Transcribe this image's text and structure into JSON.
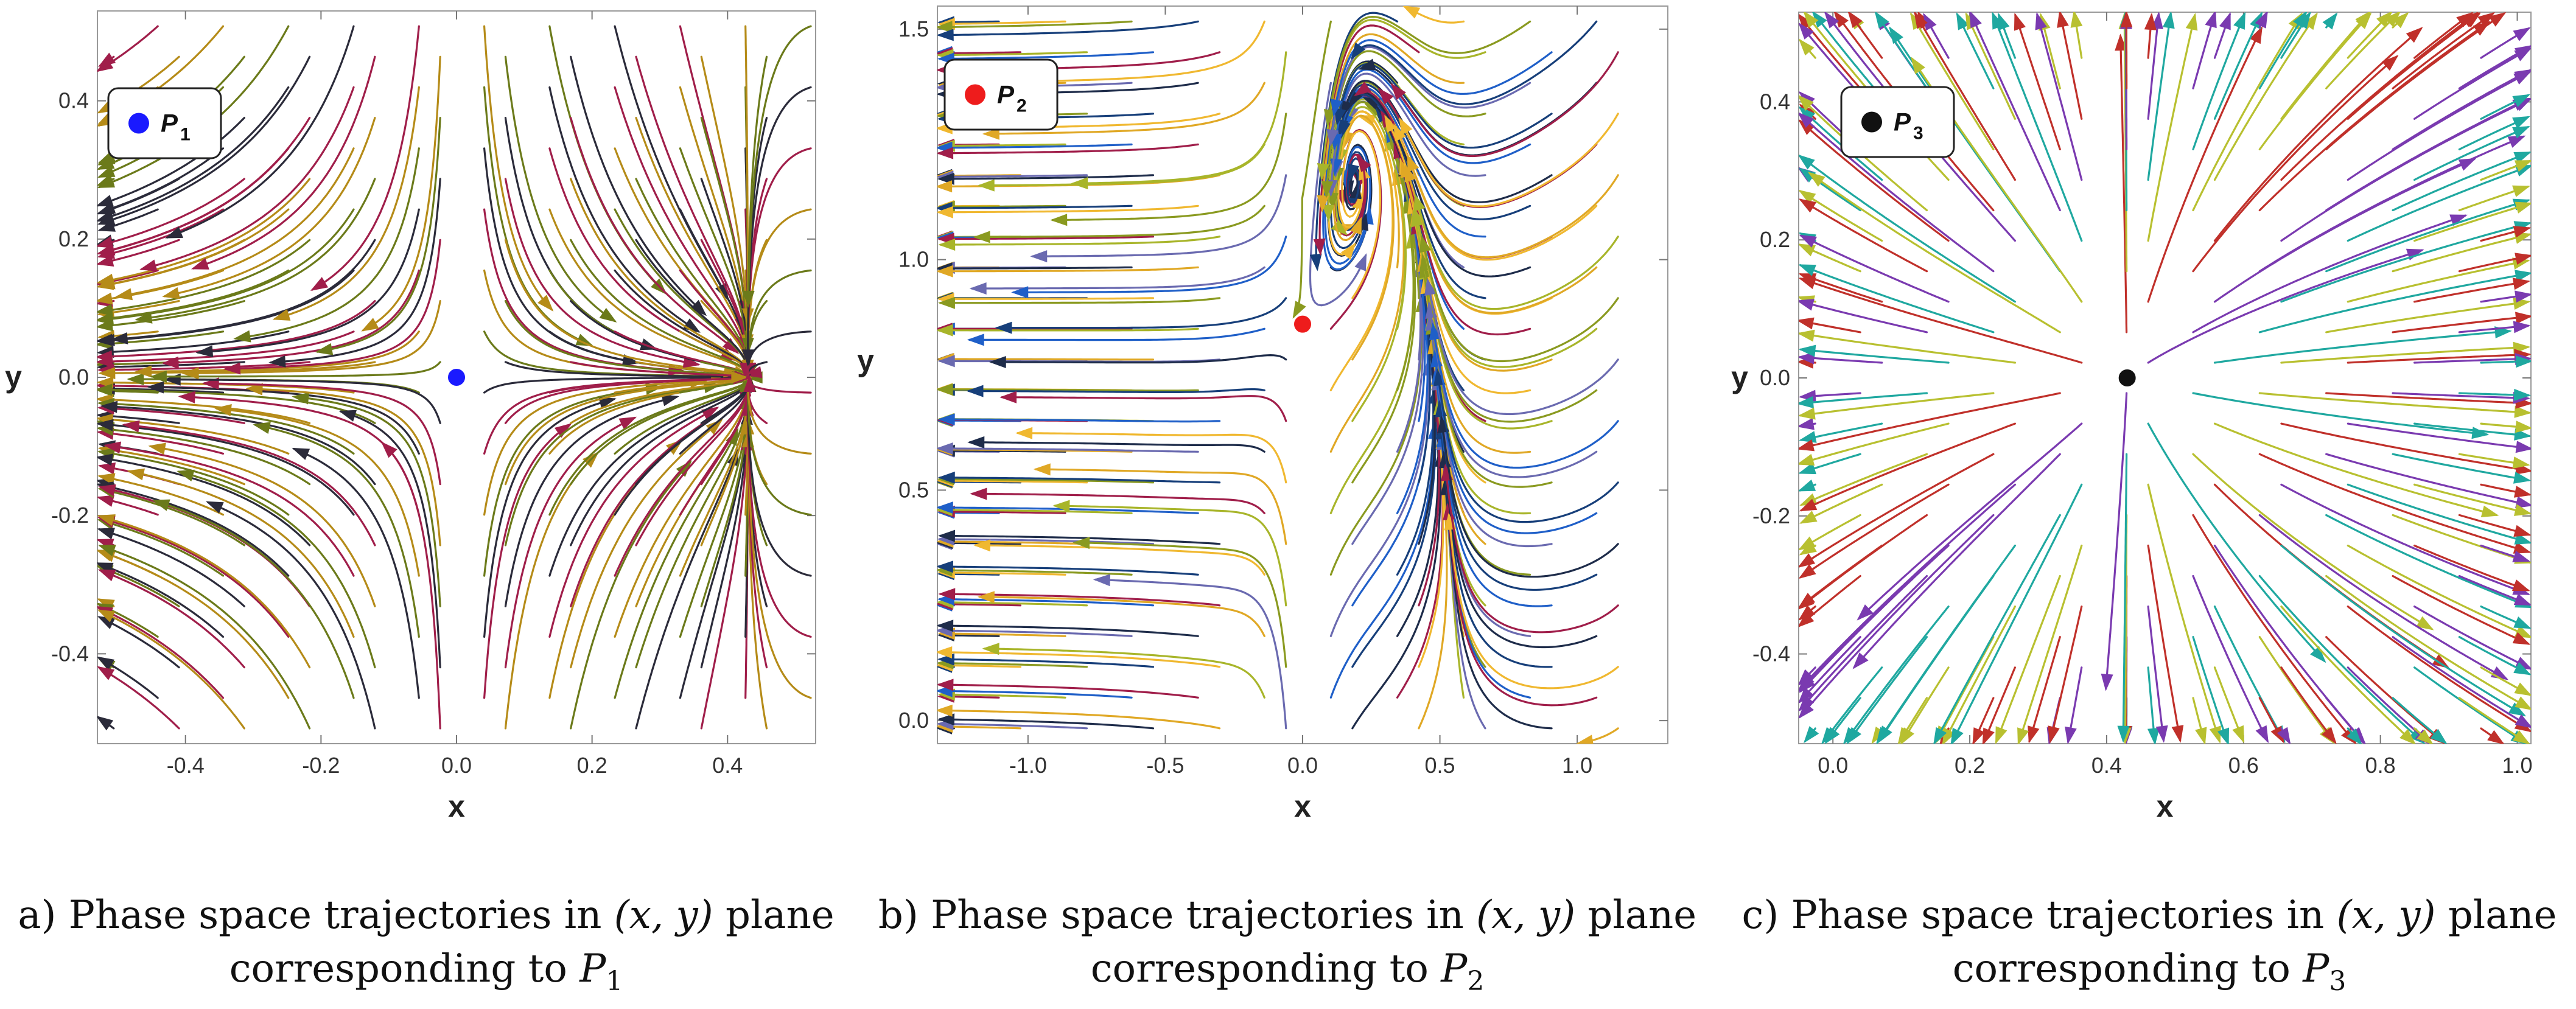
{
  "chart_data": [
    {
      "type": "streamplot",
      "xlabel": "x",
      "ylabel": "y",
      "xlim": [
        -0.53,
        0.53
      ],
      "ylim": [
        -0.53,
        0.53
      ],
      "xticks": [
        "-0.4",
        "-0.2",
        "0.0",
        "0.2",
        "0.4"
      ],
      "xtick_values": [
        -0.4,
        -0.2,
        0.0,
        0.2,
        0.4
      ],
      "yticks": [
        "-0.4",
        "-0.2",
        "0.0",
        "0.2",
        "0.4"
      ],
      "ytick_values": [
        -0.4,
        -0.2,
        0.0,
        0.2,
        0.4
      ],
      "legend": {
        "label": "P",
        "subscript": "1",
        "marker_color": "#1a1aff",
        "placement": "top-left"
      },
      "critical_point": {
        "x": 0.0,
        "y": 0.0,
        "color": "#1a1aff"
      },
      "other_fixed_point": {
        "x": 0.43,
        "y": 0.0
      },
      "caption_line1_prefix": "a) Phase space trajectories in ",
      "caption_math": "(x, y)",
      "caption_line1_suffix": " plane",
      "caption_line2_prefix": "corresponding to ",
      "caption_var": "P",
      "caption_sub": "1",
      "palette": [
        "#2b2b3a",
        "#3c4a1e",
        "#6b7a1a",
        "#9aa51c",
        "#b58b18",
        "#c0401e",
        "#a01e4a",
        "#7a1440"
      ]
    },
    {
      "type": "streamplot",
      "xlabel": "x",
      "ylabel": "y",
      "xlim": [
        -1.33,
        1.33
      ],
      "ylim": [
        -0.05,
        1.55
      ],
      "xticks": [
        "-1.0",
        "-0.5",
        "0.0",
        "0.5",
        "1.0"
      ],
      "xtick_values": [
        -1.0,
        -0.5,
        0.0,
        0.5,
        1.0
      ],
      "yticks": [
        "0.0",
        "0.5",
        "1.0",
        "1.5"
      ],
      "ytick_values": [
        0.0,
        0.5,
        1.0,
        1.5
      ],
      "legend": {
        "label": "P",
        "subscript": "2",
        "marker_color": "#ee1c1c",
        "placement": "top-left"
      },
      "critical_point": {
        "x": 0.0,
        "y": 0.86,
        "color": "#ee1c1c"
      },
      "other_fixed_point": {
        "x": 0.43,
        "y": 0.0
      },
      "caption_line1_prefix": "b) Phase space trajectories in ",
      "caption_math": "(x, y)",
      "caption_line1_suffix": " plane",
      "caption_line2_prefix": "corresponding to ",
      "caption_var": "P",
      "caption_sub": "2",
      "palette": [
        "#1e2c4a",
        "#173f7a",
        "#1f5fc8",
        "#6a6ab0",
        "#8a9a20",
        "#a8b52a",
        "#e0a825",
        "#f0b830",
        "#a01e4a"
      ]
    },
    {
      "type": "streamplot",
      "xlabel": "x",
      "ylabel": "y",
      "xlim": [
        -0.05,
        1.02
      ],
      "ylim": [
        -0.53,
        0.53
      ],
      "xticks": [
        "0.0",
        "0.2",
        "0.4",
        "0.6",
        "0.8",
        "1.0"
      ],
      "xtick_values": [
        0.0,
        0.2,
        0.4,
        0.6,
        0.8,
        1.0
      ],
      "yticks": [
        "-0.4",
        "-0.2",
        "0.0",
        "0.2",
        "0.4"
      ],
      "ytick_values": [
        -0.4,
        -0.2,
        0.0,
        0.2,
        0.4
      ],
      "legend": {
        "label": "P",
        "subscript": "3",
        "marker_color": "#111111",
        "placement": "top-left"
      },
      "critical_point": {
        "x": 0.43,
        "y": 0.0,
        "color": "#111111"
      },
      "caption_line1_prefix": "c) Phase space trajectories in ",
      "caption_math": "(x, y)",
      "caption_line1_suffix": " plane",
      "caption_line2_prefix": "corresponding to ",
      "caption_var": "P",
      "caption_sub": "3",
      "palette": [
        "#1fa8a0",
        "#2a8ac0",
        "#7a3ab0",
        "#a02a70",
        "#c0302a",
        "#8ab52a",
        "#b8c030",
        "#c07a20"
      ]
    }
  ]
}
